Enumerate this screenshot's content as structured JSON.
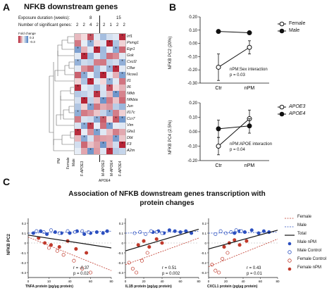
{
  "panel_a": {
    "letter": "A",
    "title": "NFKB downstream genes",
    "row_labels": {
      "exposure": "Exposure duration (weeks):",
      "nsig": "Number of significant genes:"
    },
    "exposure_values": [
      "8",
      "15"
    ],
    "nsig_values": [
      "2",
      "2",
      "4",
      "2",
      "2",
      "1",
      "2",
      "2"
    ],
    "scale_title": "Fold change",
    "scale_ticks": [
      "0.3",
      "-0.3"
    ],
    "genes": [
      "Irf1",
      "Psmg1",
      "Egr1",
      "Gsk",
      "Cxcl2",
      "Cflar",
      "Ncoa1",
      "Il1",
      "Il6",
      "Nfkb",
      "Nfkbia",
      "Jun",
      "Il17c",
      "Ccr7",
      "Vim",
      "Gfa1",
      "Dbt",
      "F3",
      "A2m"
    ],
    "cluster_labels": [
      "PM",
      "Female",
      "Male"
    ],
    "col_labels": [
      "F-APOE3",
      "M-APOE3",
      "M-APOE4",
      "F-APOE4"
    ],
    "bottom_group": "APOE4"
  },
  "panel_b": {
    "letter": "B",
    "top_chart": {
      "ylabel": "NFKB PC2 (20%)",
      "yticks": [
        "0.20",
        "0.10",
        "0.00",
        "-0.10",
        "-0.20",
        "-0.30"
      ],
      "xticks": [
        "Ctr",
        "nPM"
      ],
      "legend": [
        "Female",
        "Male"
      ],
      "annotation_line1": "nPM:Sex interaction",
      "annotation_line2": "p = 0.03"
    },
    "bottom_chart": {
      "ylabel": "NFKB PC4 (2.5%)",
      "yticks": [
        "0.20",
        "0.10",
        "0.00",
        "-0.10",
        "-0.20"
      ],
      "xticks": [
        "Ctr",
        "nPM"
      ],
      "legend": [
        "APOE3",
        "APOE4"
      ],
      "annotation_line1": "nPM:APOE interaction",
      "annotation_line2": "p = 0.04"
    }
  },
  "panel_c": {
    "letter": "C",
    "title_line1": "Association of NFKB downstream genes transcription with",
    "title_line2": "protein changes",
    "ylabel": "NFKB PC2",
    "scatters": [
      {
        "xlabel": "TNFA protein (pg/μg protein)",
        "r": "r = -0.37",
        "p": "p = 0.02"
      },
      {
        "xlabel": "IL1B protein (pg/μg protein)",
        "r": "r = 0.51",
        "p": "p = 0.002"
      },
      {
        "xlabel": "CXCL1 protein (pg/μg protein)",
        "r": "r = 0.43",
        "p": "p = 0.01"
      }
    ],
    "legend": [
      "Female",
      "Male",
      "Total",
      "Male nPM",
      "Male Control",
      "Female Control",
      "Female nPM"
    ]
  },
  "colors": {
    "red": "#c0392b",
    "blue": "#2b4fbf",
    "heat_red": "#b2182b",
    "heat_blue": "#6f95c9",
    "black": "#111111"
  },
  "chart_data": [
    {
      "type": "line",
      "panel": "B-top",
      "ylabel": "NFKB PC2 (20%)",
      "categories": [
        "Ctr",
        "nPM"
      ],
      "ylim": [
        -0.3,
        0.2
      ],
      "series": [
        {
          "name": "Female",
          "values": [
            -0.18,
            -0.03
          ],
          "err": [
            0.1,
            0.05
          ]
        },
        {
          "name": "Male",
          "values": [
            0.09,
            0.08
          ],
          "err": [
            0.005,
            0.005
          ]
        }
      ]
    },
    {
      "type": "line",
      "panel": "B-bottom",
      "ylabel": "NFKB PC4 (2.5%)",
      "categories": [
        "Ctr",
        "nPM"
      ],
      "ylim": [
        -0.2,
        0.2
      ],
      "series": [
        {
          "name": "APOE3",
          "values": [
            -0.1,
            0.09
          ],
          "err": [
            0.06,
            0.06
          ]
        },
        {
          "name": "APOE4",
          "values": [
            0.02,
            0.04
          ],
          "err": [
            0.06,
            0.05
          ]
        }
      ]
    },
    {
      "type": "scatter",
      "panel": "C-TNFA",
      "xticks": [
        "0",
        "10",
        "40",
        "60",
        "80"
      ],
      "yticks": [
        "0.2",
        "0.1",
        "0",
        "-0.1",
        "-0.2",
        "-0.3"
      ],
      "xlim": [
        0,
        80
      ],
      "ylim": [
        -0.35,
        0.25
      ],
      "series": [
        {
          "name": "Male nPM",
          "points": [
            [
              5,
              0.1
            ],
            [
              12,
              0.12
            ],
            [
              18,
              0.09
            ],
            [
              26,
              0.11
            ],
            [
              32,
              0.1
            ],
            [
              40,
              0.1
            ],
            [
              47,
              0.12
            ],
            [
              54,
              0.09
            ],
            [
              60,
              0.1
            ],
            [
              66,
              0.11
            ],
            [
              72,
              0.1
            ],
            [
              76,
              0.12
            ]
          ]
        },
        {
          "name": "Male Control",
          "points": [
            [
              8,
              0.12
            ],
            [
              15,
              0.11
            ],
            [
              22,
              0.13
            ],
            [
              30,
              0.1
            ],
            [
              38,
              0.12
            ],
            [
              45,
              0.11
            ],
            [
              52,
              0.12
            ],
            [
              58,
              0.11
            ]
          ]
        },
        {
          "name": "Female Control",
          "points": [
            [
              20,
              -0.05
            ],
            [
              28,
              -0.08
            ],
            [
              34,
              -0.12
            ],
            [
              44,
              -0.18
            ],
            [
              52,
              -0.26
            ],
            [
              60,
              -0.3
            ]
          ]
        },
        {
          "name": "Female nPM",
          "points": [
            [
              10,
              0.05
            ],
            [
              16,
              0.0
            ],
            [
              22,
              -0.02
            ],
            [
              30,
              -0.04
            ],
            [
              38,
              0.02
            ],
            [
              46,
              -0.06
            ],
            [
              56,
              -0.1
            ]
          ]
        }
      ],
      "trend": {
        "Total": [
          [
            0,
            0.08
          ],
          [
            80,
            -0.05
          ]
        ],
        "Female": [
          [
            0,
            0.06
          ],
          [
            80,
            -0.28
          ]
        ],
        "Male": [
          [
            0,
            0.1
          ],
          [
            80,
            0.12
          ]
        ]
      }
    },
    {
      "type": "scatter",
      "panel": "C-IL1B",
      "xticks": [
        "0",
        "20",
        "40",
        "60",
        "80"
      ],
      "yticks": [
        "0.2",
        "0.1",
        "0",
        "-0.1",
        "-0.2",
        "-0.3"
      ],
      "xlim": [
        0,
        80
      ],
      "ylim": [
        -0.35,
        0.25
      ],
      "series": [
        {
          "name": "Male nPM",
          "points": [
            [
              30,
              0.11
            ],
            [
              36,
              0.12
            ],
            [
              42,
              0.1
            ],
            [
              48,
              0.13
            ],
            [
              54,
              0.12
            ],
            [
              60,
              0.11
            ],
            [
              66,
              0.12
            ],
            [
              72,
              0.1
            ]
          ]
        },
        {
          "name": "Male Control",
          "points": [
            [
              10,
              0.1
            ],
            [
              16,
              0.11
            ],
            [
              22,
              0.09
            ],
            [
              28,
              0.12
            ],
            [
              34,
              0.11
            ],
            [
              40,
              0.1
            ]
          ]
        },
        {
          "name": "Female Control",
          "points": [
            [
              4,
              -0.2
            ],
            [
              8,
              -0.26
            ],
            [
              12,
              -0.3
            ],
            [
              18,
              -0.18
            ],
            [
              24,
              -0.1
            ]
          ]
        },
        {
          "name": "Female nPM",
          "points": [
            [
              14,
              -0.02
            ],
            [
              20,
              0.02
            ],
            [
              26,
              -0.04
            ],
            [
              34,
              0.04
            ],
            [
              40,
              0.0
            ]
          ]
        }
      ],
      "trend": {
        "Total": [
          [
            0,
            -0.08
          ],
          [
            80,
            0.14
          ]
        ],
        "Female": [
          [
            0,
            -0.22
          ],
          [
            80,
            0.05
          ]
        ],
        "Male": [
          [
            0,
            0.1
          ],
          [
            80,
            0.12
          ]
        ]
      }
    },
    {
      "type": "scatter",
      "panel": "C-CXCL1",
      "xticks": [
        "0",
        "20",
        "40",
        "60",
        "80"
      ],
      "yticks": [
        "0.2",
        "0.1",
        "0",
        "-0.1",
        "-0.2",
        "-0.3"
      ],
      "xlim": [
        0,
        80
      ],
      "ylim": [
        -0.35,
        0.25
      ],
      "series": [
        {
          "name": "Male nPM",
          "points": [
            [
              30,
              0.1
            ],
            [
              36,
              0.12
            ],
            [
              42,
              0.11
            ],
            [
              50,
              0.13
            ],
            [
              58,
              0.1
            ],
            [
              64,
              0.12
            ],
            [
              70,
              0.11
            ]
          ]
        },
        {
          "name": "Male Control",
          "points": [
            [
              8,
              0.09
            ],
            [
              14,
              0.12
            ],
            [
              20,
              0.1
            ],
            [
              26,
              0.11
            ],
            [
              32,
              0.13
            ],
            [
              38,
              0.12
            ]
          ]
        },
        {
          "name": "Female Control",
          "points": [
            [
              4,
              -0.22
            ],
            [
              8,
              -0.28
            ],
            [
              12,
              -0.3
            ],
            [
              16,
              -0.16
            ],
            [
              22,
              -0.1
            ]
          ]
        },
        {
          "name": "Female nPM",
          "points": [
            [
              18,
              -0.04
            ],
            [
              24,
              0.0
            ],
            [
              30,
              0.03
            ],
            [
              36,
              -0.02
            ],
            [
              44,
              0.02
            ]
          ]
        }
      ],
      "trend": {
        "Total": [
          [
            0,
            -0.06
          ],
          [
            80,
            0.13
          ]
        ],
        "Female": [
          [
            0,
            -0.24
          ],
          [
            80,
            0.04
          ]
        ],
        "Male": [
          [
            0,
            0.1
          ],
          [
            80,
            0.11
          ]
        ]
      }
    }
  ]
}
